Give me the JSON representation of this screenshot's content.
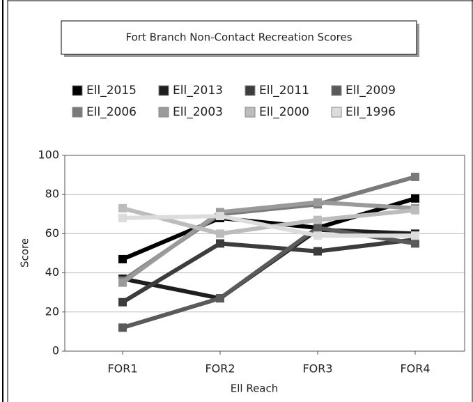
{
  "chart_data": {
    "type": "line",
    "title": "Fort Branch Non-Contact Recreation Scores",
    "x_label": "Ell Reach",
    "y_label": "Score",
    "categories": [
      "FOR1",
      "FOR2",
      "FOR3",
      "FOR4"
    ],
    "series": [
      {
        "name": "Ell_2015",
        "color": "#000000",
        "values": [
          47,
          68,
          63,
          78
        ]
      },
      {
        "name": "Ell_2013",
        "color": "#1e1e1e",
        "values": [
          37,
          27,
          62,
          60
        ]
      },
      {
        "name": "Ell_2011",
        "color": "#3c3c3c",
        "values": [
          25,
          55,
          51,
          57
        ]
      },
      {
        "name": "Ell_2009",
        "color": "#5a5a5a",
        "values": [
          12,
          27,
          63,
          55
        ]
      },
      {
        "name": "Ell_2006",
        "color": "#7a7a7a",
        "values": [
          36,
          70,
          75,
          89
        ]
      },
      {
        "name": "Ell_2003",
        "color": "#9a9a9a",
        "values": [
          35,
          71,
          76,
          73
        ]
      },
      {
        "name": "Ell_2000",
        "color": "#bcbcbc",
        "values": [
          73,
          60,
          67,
          72
        ]
      },
      {
        "name": "Ell_1996",
        "color": "#dcdcdc",
        "values": [
          68,
          69,
          59,
          59
        ]
      }
    ],
    "ylim": [
      0,
      100
    ],
    "yticks": [
      0,
      20,
      40,
      60,
      80,
      100
    ],
    "grid": true
  }
}
